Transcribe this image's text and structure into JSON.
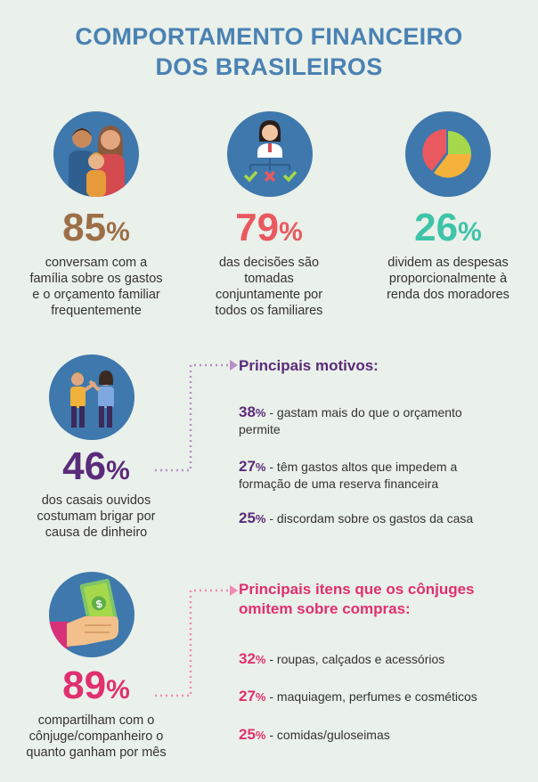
{
  "title": {
    "line1": "COMPORTAMENTO FINANCEIRO",
    "line2": "DOS BRASILEIROS"
  },
  "colors": {
    "title": "#4a82b3",
    "brown": "#9c6f47",
    "red": "#e9595f",
    "teal": "#3ec4a8",
    "purple": "#5a2b7a",
    "pink": "#e0306f",
    "circle": "#3e78ad"
  },
  "stats_top": [
    {
      "number": "85",
      "symbol": "%",
      "icon": "family-icon",
      "lines": [
        "conversam com a",
        "família sobre os gastos",
        "e o orçamento familiar",
        "frequentemente"
      ]
    },
    {
      "number": "79",
      "symbol": "%",
      "icon": "decision-icon",
      "lines": [
        "das decisões são",
        "tomadas",
        "conjuntamente por",
        "todos os familiares"
      ]
    },
    {
      "number": "26",
      "symbol": "%",
      "icon": "pie-chart-icon",
      "lines": [
        "dividem as despesas",
        "proporcionalmente à",
        "renda dos moradores"
      ]
    }
  ],
  "couples": {
    "number": "46",
    "symbol": "%",
    "icon": "arguing-couple-icon",
    "lines": [
      "dos casais ouvidos",
      "costumam brigar por",
      "causa de dinheiro"
    ],
    "heading": "Principais motivos:",
    "reasons": [
      {
        "pct": "38",
        "sym": "%",
        "line1": " - gastam mais do que o orçamento",
        "line2": "permite"
      },
      {
        "pct": "27",
        "sym": "%",
        "line1": " - têm gastos altos que impedem a",
        "line2": "formação de uma reserva financeira"
      },
      {
        "pct": "25",
        "sym": "%",
        "line1": " - discordam sobre os gastos da casa",
        "line2": ""
      }
    ]
  },
  "sharing": {
    "number": "89",
    "symbol": "%",
    "icon": "money-hand-icon",
    "lines": [
      "compartilham com o",
      "cônjuge/companheiro o",
      "quanto ganham por mês"
    ],
    "heading_line1": "Principais itens que os cônjuges",
    "heading_line2": "omitem sobre compras:",
    "items": [
      {
        "pct": "32",
        "sym": "%",
        "text": " - roupas, calçados e acessórios"
      },
      {
        "pct": "27",
        "sym": "%",
        "text": " - maquiagem, perfumes e cosméticos"
      },
      {
        "pct": "25",
        "sym": "%",
        "text": " - comidas/guloseimas"
      }
    ]
  }
}
